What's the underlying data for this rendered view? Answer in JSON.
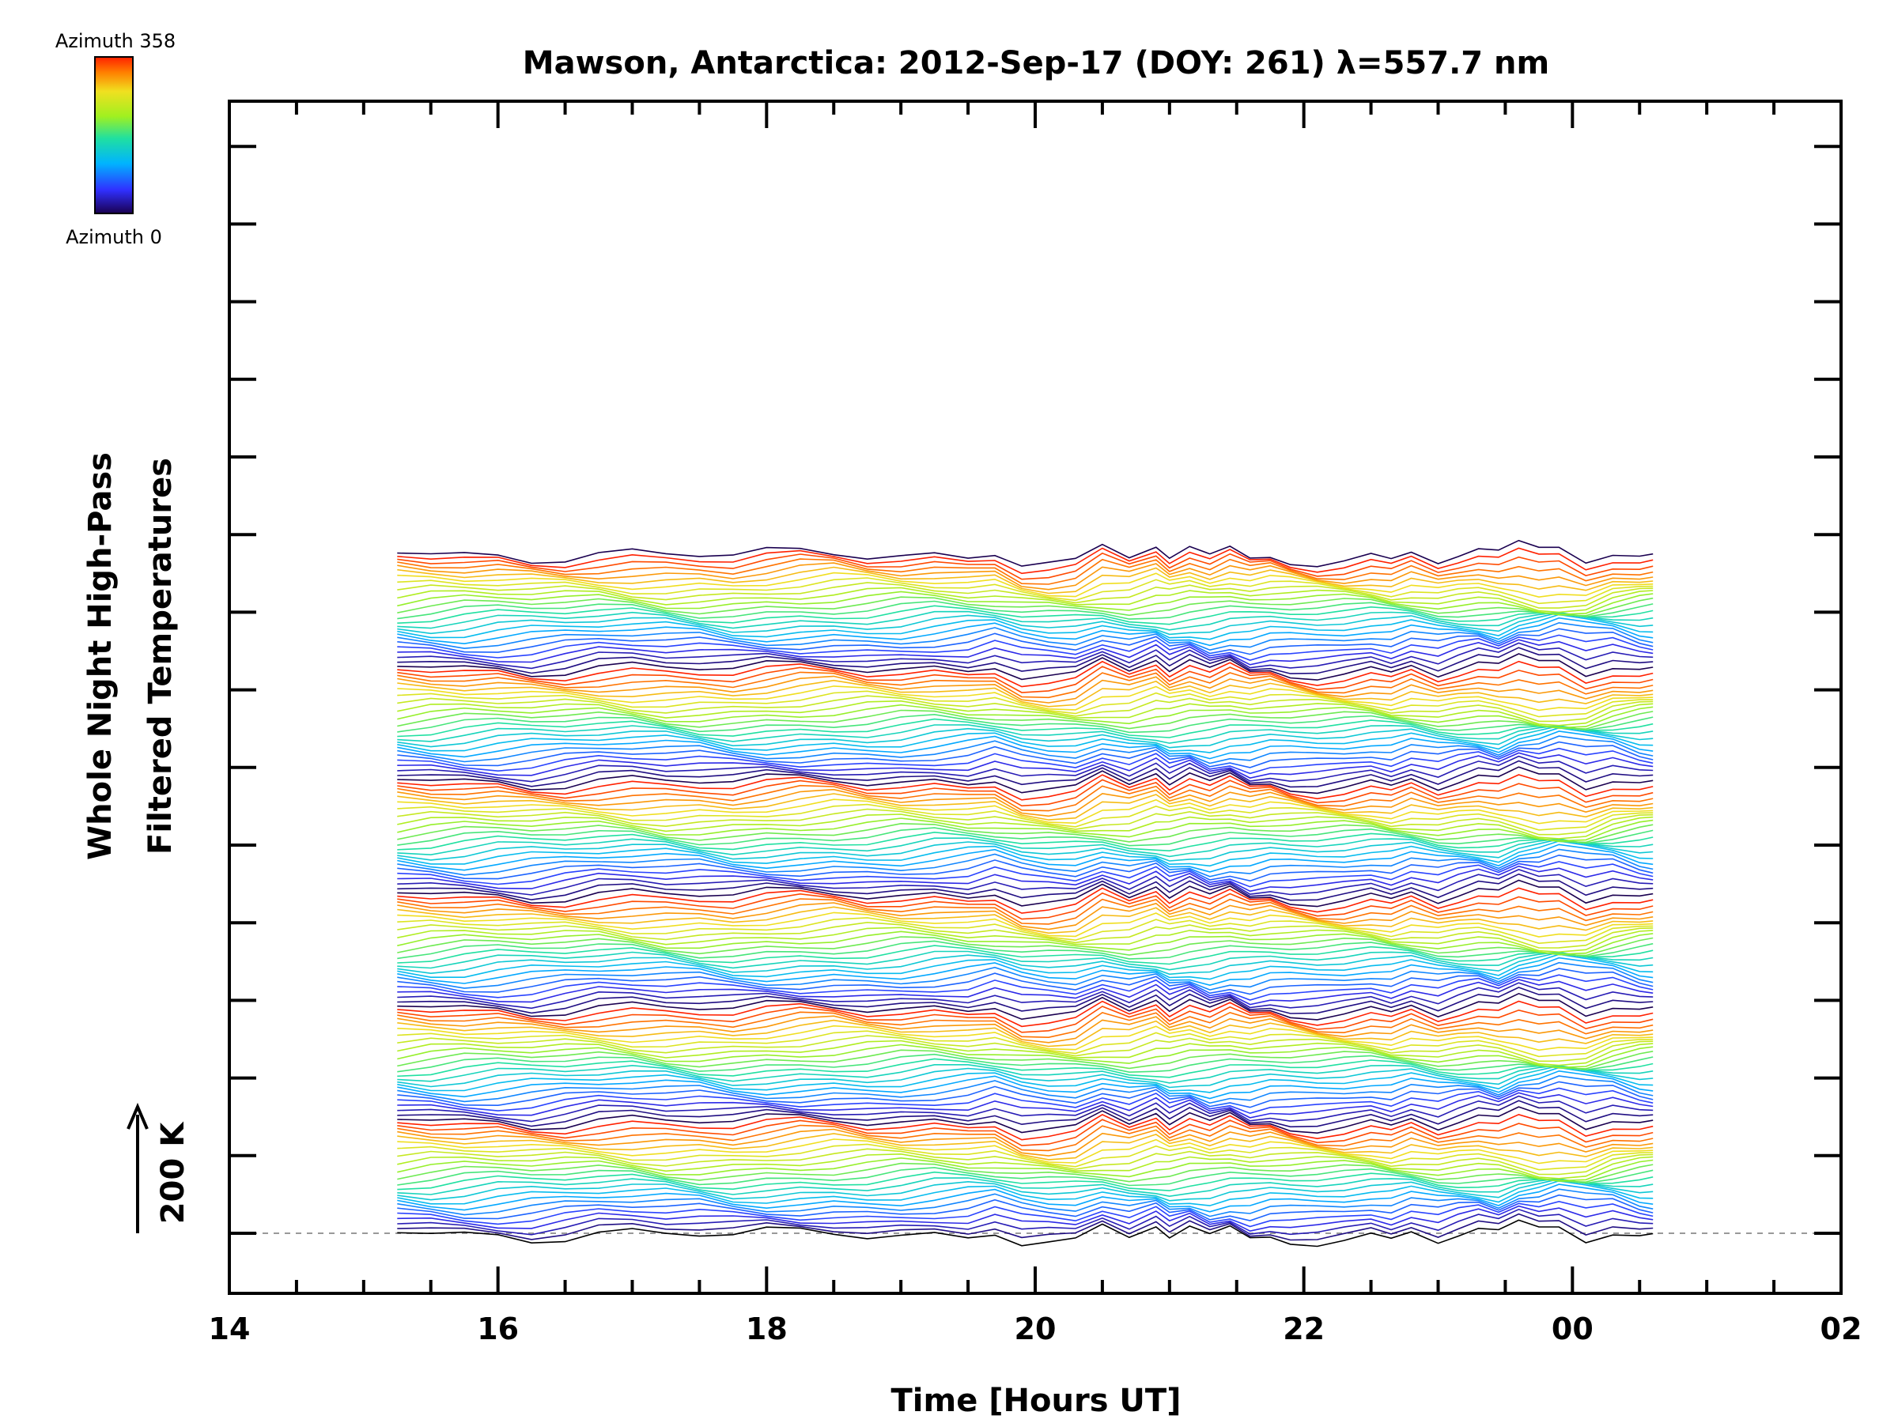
{
  "chart_data": {
    "type": "line",
    "title": "Mawson, Antarctica: 2012-Sep-17 (DOY: 261) λ=557.7 nm",
    "xlabel": "Time [Hours UT]",
    "ylabel_line1": "Whole Night High-Pass",
    "ylabel_line2": "Filtered Temperatures",
    "x_ticks": [
      "14",
      "16",
      "18",
      "20",
      "22",
      "00",
      "02"
    ],
    "xlim": [
      14,
      26
    ],
    "scale_bar": {
      "label": "200 K",
      "value_K": 200
    },
    "colorbar": {
      "top_label": "Azimuth 358",
      "bottom_label": "Azimuth 0",
      "min": 0,
      "max": 358,
      "colormap": "rainbow"
    },
    "n_traces": 145,
    "time_samples_h": [
      15.25,
      15.5,
      15.75,
      16.0,
      16.25,
      16.5,
      16.75,
      17.0,
      17.25,
      17.5,
      17.75,
      18.0,
      18.25,
      18.5,
      18.75,
      19.0,
      19.25,
      19.5,
      19.7,
      19.9,
      20.1,
      20.3,
      20.5,
      20.7,
      20.9,
      21.0,
      21.15,
      21.3,
      21.45,
      21.6,
      21.75,
      21.9,
      22.1,
      22.3,
      22.5,
      22.65,
      22.8,
      23.0,
      23.15,
      23.3,
      23.45,
      23.6,
      23.75,
      23.9,
      24.1,
      24.3,
      24.5,
      24.6
    ],
    "bottom_trace_K": [
      0,
      -2,
      -3,
      -1,
      -3,
      0,
      5,
      4,
      -1,
      -4,
      -9,
      -4,
      0,
      2,
      -1,
      0,
      4,
      2,
      8,
      -14,
      -18,
      -18,
      5,
      -10,
      8,
      -10,
      5,
      -8,
      6,
      -6,
      2,
      -4,
      -8,
      -6,
      0,
      -8,
      4,
      -12,
      -4,
      2,
      -6,
      6,
      -2,
      4,
      -12,
      2,
      -2,
      0
    ],
    "colors": {
      "reference_line": "#999999",
      "frame": "#000000"
    }
  }
}
